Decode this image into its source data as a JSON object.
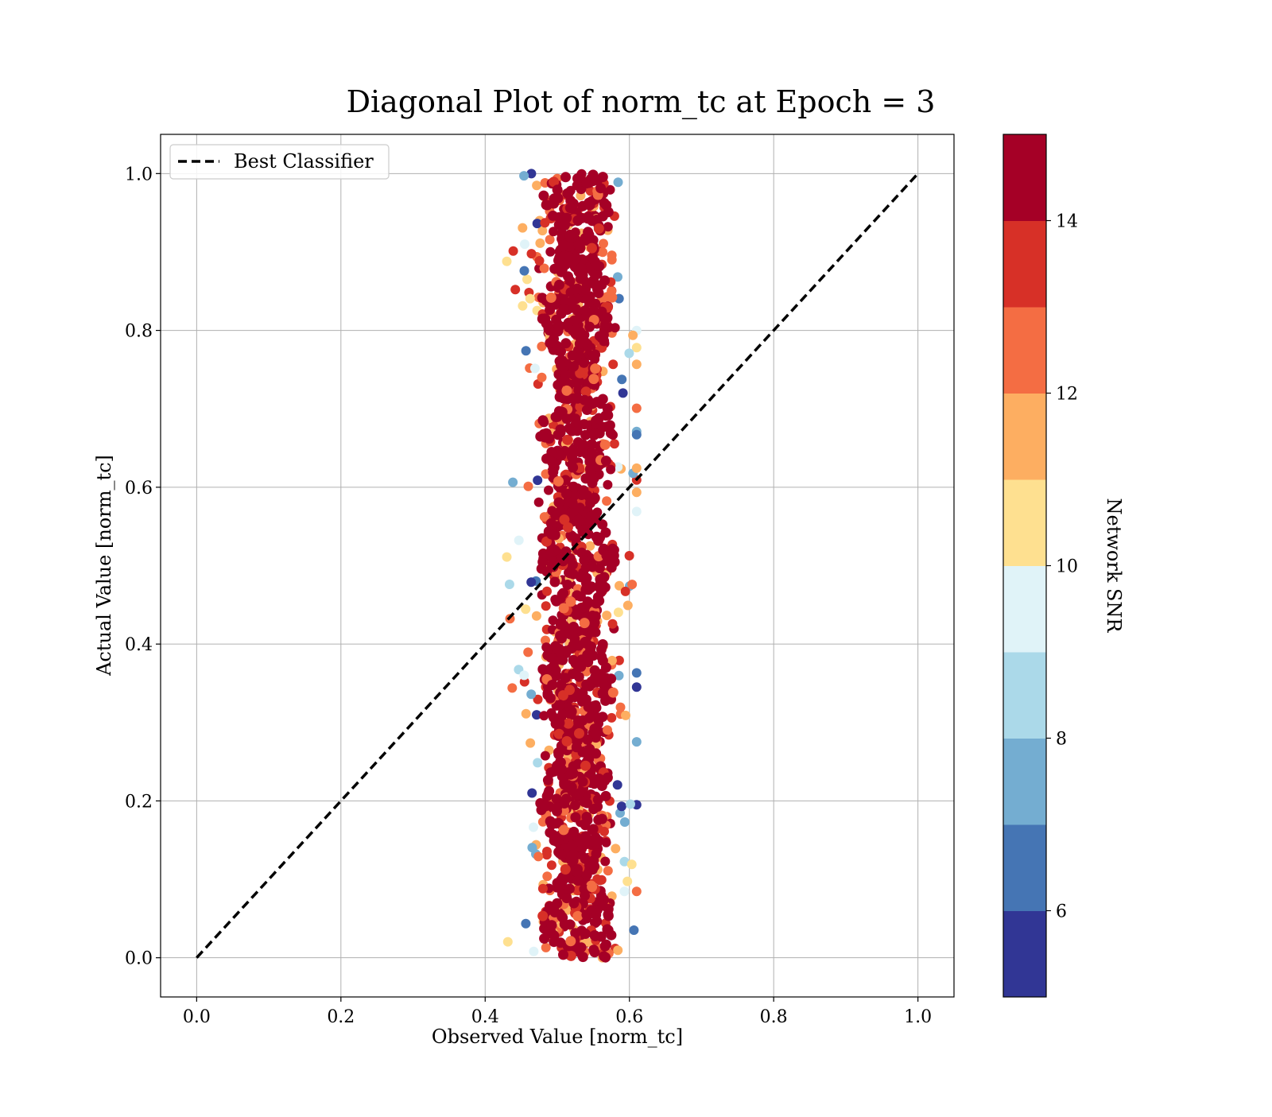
{
  "chart_data": {
    "type": "scatter",
    "title": "Diagonal Plot of norm_tc at Epoch = 3",
    "xlabel": "Observed Value [norm_tc]",
    "ylabel": "Actual Value [norm_tc]",
    "xlim": [
      -0.05,
      1.05
    ],
    "ylim": [
      -0.05,
      1.05
    ],
    "x_ticks": [
      0.0,
      0.2,
      0.4,
      0.6,
      0.8,
      1.0
    ],
    "y_ticks": [
      0.0,
      0.2,
      0.4,
      0.6,
      0.8,
      1.0
    ],
    "x_tick_labels": [
      "0.0",
      "0.2",
      "0.4",
      "0.6",
      "0.8",
      "1.0"
    ],
    "y_tick_labels": [
      "0.0",
      "0.2",
      "0.4",
      "0.6",
      "0.8",
      "1.0"
    ],
    "grid": true,
    "legend": {
      "position": "upper-left",
      "entries": [
        "Best Classifier"
      ]
    },
    "reference_line": {
      "name": "Best Classifier",
      "style": "dashed",
      "color": "#000000",
      "x": [
        0.0,
        1.0
      ],
      "y": [
        0.0,
        1.0
      ]
    },
    "points_cluster": {
      "description_x_range": [
        0.43,
        0.61
      ],
      "y_range": [
        0.0,
        1.0
      ],
      "core_x_center": 0.528,
      "core_x_halfwidth": 0.052
    },
    "colorbar": {
      "label": "Network SNR",
      "range": [
        5,
        15
      ],
      "ticks": [
        6,
        8,
        10,
        12,
        14
      ],
      "tick_labels": [
        "6",
        "8",
        "10",
        "12",
        "14"
      ],
      "colors": [
        "#313695",
        "#4575b4",
        "#74add1",
        "#abd9e9",
        "#e0f3f8",
        "#fee090",
        "#fdae61",
        "#f46d43",
        "#d73027",
        "#a50026"
      ]
    }
  }
}
